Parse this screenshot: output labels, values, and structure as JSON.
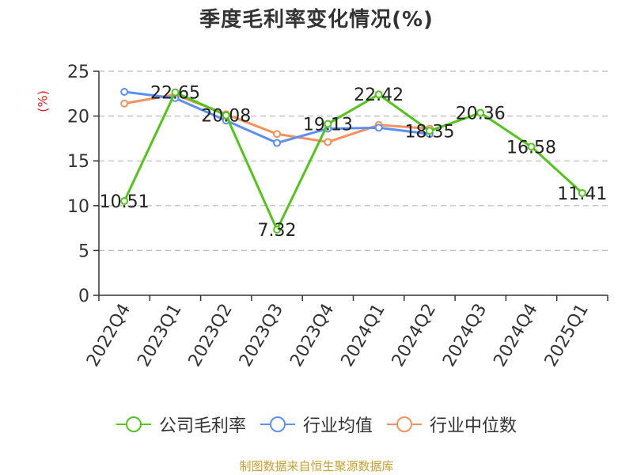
{
  "title": "季度毛利率变化情况(%)",
  "source": "制图数据来自恒生聚源数据库",
  "colors": {
    "company": "#52c41a",
    "industry_avg": "#5b8ff9",
    "industry_median": "#f6905c",
    "grid": "#bbbbbb",
    "axis": "#333333",
    "ylabel": "#e02020"
  },
  "chart_data": {
    "type": "line",
    "title": "季度毛利率变化情况(%)",
    "ylabel": "(%)",
    "xlabel": "",
    "categories": [
      "2022Q4",
      "2023Q1",
      "2023Q2",
      "2023Q3",
      "2023Q4",
      "2024Q1",
      "2024Q2",
      "2024Q3",
      "2024Q4",
      "2025Q1"
    ],
    "ylim": [
      0,
      25
    ],
    "yticks": [
      0,
      5,
      10,
      15,
      20,
      25
    ],
    "grid": "horizontal-dashed",
    "legend_position": "bottom",
    "series": [
      {
        "name": "公司毛利率",
        "color": "#52c41a",
        "values": [
          10.51,
          22.65,
          20.08,
          7.32,
          19.13,
          22.42,
          18.35,
          20.36,
          16.58,
          11.41
        ],
        "labels": [
          "10.51",
          "22.65",
          "20.08",
          "7.32",
          "19.13",
          "22.42",
          "18.35",
          "20.36",
          "16.58",
          "11.41"
        ]
      },
      {
        "name": "行业均值",
        "color": "#5b8ff9",
        "values": [
          22.7,
          22.0,
          19.5,
          17.0,
          18.6,
          18.7,
          18.0,
          null,
          null,
          null
        ]
      },
      {
        "name": "行业中位数",
        "color": "#f6905c",
        "values": [
          21.4,
          22.4,
          20.2,
          18.0,
          17.1,
          19.0,
          18.6,
          null,
          null,
          null
        ]
      }
    ]
  }
}
